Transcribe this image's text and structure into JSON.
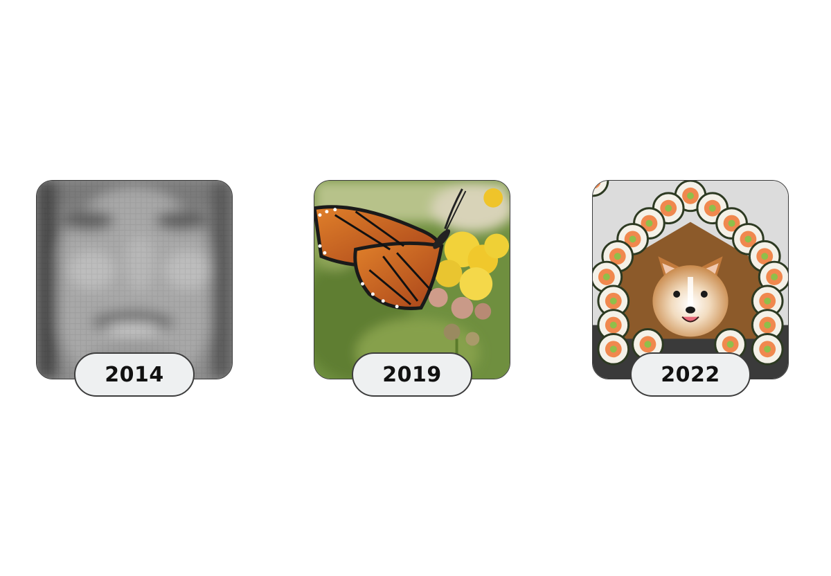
{
  "cards": [
    {
      "year": "2014",
      "image": "blurry-pixelated-face"
    },
    {
      "year": "2019",
      "image": "monarch-butterfly-on-yellow-flowers"
    },
    {
      "year": "2022",
      "image": "corgi-in-sushi-house"
    }
  ]
}
